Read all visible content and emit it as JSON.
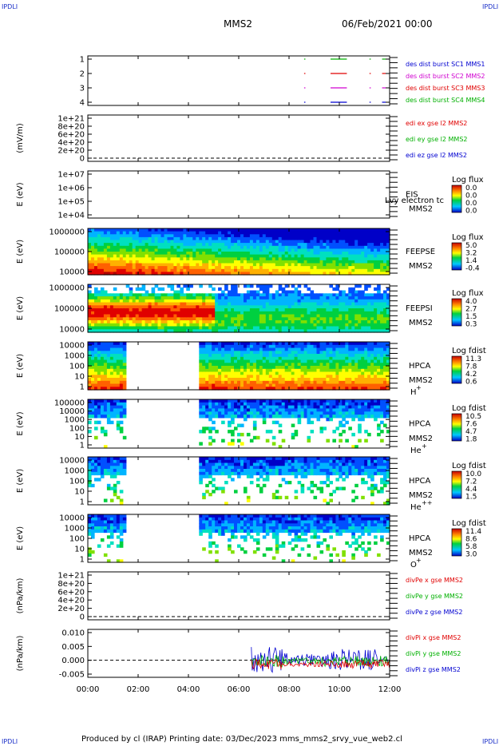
{
  "corner_labels": {
    "left": "IPDLI",
    "right": "IPDLI"
  },
  "header": {
    "spacecraft": "MMS2",
    "date": "06/Feb/2021 00:00"
  },
  "footer": {
    "text": "Produced by cl (IRAP)   Printing date: 03/Dec/2023   mms_mms2_srvy_vue_web2.cl"
  },
  "time_axis": {
    "ticks": [
      "00:00",
      "02:00",
      "04:00",
      "06:00",
      "08:00",
      "10:00",
      "12:00"
    ],
    "range_hours": [
      0,
      12
    ]
  },
  "colors": {
    "red": "#e00000",
    "green": "#00b000",
    "blue": "#0000d0",
    "magenta": "#d000d0",
    "dark": "#222"
  },
  "chart_data": [
    {
      "id": "burst",
      "type": "scatter",
      "yticks": [
        "1",
        "2",
        "3",
        "4"
      ],
      "legend": [
        {
          "label": "des dist burst SC1 MMS1",
          "color": "#0000d0"
        },
        {
          "label": "des dist burst SC2 MMS2",
          "color": "#d000d0"
        },
        {
          "label": "des dist burst SC3 MMS3",
          "color": "#e00000"
        },
        {
          "label": "des dist burst SC4 MMS4",
          "color": "#00b000"
        }
      ],
      "segments": [
        {
          "level": 4,
          "start": 8.6,
          "end": 8.65
        },
        {
          "level": 4,
          "start": 9.65,
          "end": 10.3
        },
        {
          "level": 4,
          "start": 11.2,
          "end": 11.25
        },
        {
          "level": 4,
          "start": 11.7,
          "end": 11.85
        },
        {
          "level": 3,
          "start": 8.6,
          "end": 8.65
        },
        {
          "level": 3,
          "start": 9.65,
          "end": 10.3
        },
        {
          "level": 3,
          "start": 11.2,
          "end": 11.25
        },
        {
          "level": 3,
          "start": 11.7,
          "end": 11.85
        },
        {
          "level": 2,
          "start": 8.6,
          "end": 8.65
        },
        {
          "level": 2,
          "start": 9.65,
          "end": 10.3
        },
        {
          "level": 2,
          "start": 11.2,
          "end": 11.25
        },
        {
          "level": 2,
          "start": 11.7,
          "end": 11.85
        },
        {
          "level": 1,
          "start": 8.6,
          "end": 8.65
        },
        {
          "level": 1,
          "start": 9.65,
          "end": 10.3
        },
        {
          "level": 1,
          "start": 11.2,
          "end": 11.25
        },
        {
          "level": 1,
          "start": 11.7,
          "end": 11.85
        }
      ]
    },
    {
      "id": "edi",
      "type": "line",
      "ylabel": "(mV/m)",
      "yticks": [
        "1e+21",
        "8e+20",
        "6e+20",
        "4e+20",
        "2e+20",
        "0"
      ],
      "legend": [
        {
          "label": "edi ex gse l2 MMS2",
          "color": "#e00000"
        },
        {
          "label": "edi ey gse l2 MMS2",
          "color": "#00b000"
        },
        {
          "label": "edi ez gse l2 MMS2",
          "color": "#0000d0"
        }
      ]
    },
    {
      "id": "eis",
      "type": "heatmap",
      "ylabel": "E (eV)",
      "yticks": [
        "1e+07",
        "1e+06",
        "1e+05",
        "1e+04"
      ],
      "name": "EIS",
      "name2": "MMS2",
      "overlay": "Lvy electron tc",
      "cbar_title": "Log flux",
      "cbar_values": [
        "0.0",
        "0.0",
        "0.0",
        "0.0"
      ]
    },
    {
      "id": "feepse",
      "type": "heatmap",
      "ylabel": "E (eV)",
      "yticks": [
        "1000000",
        "100000",
        "10000"
      ],
      "name": "FEEPSE",
      "name2": "MMS2",
      "cbar_title": "Log flux",
      "cbar_values": [
        "5.0",
        "3.2",
        "1.4",
        "-0.4"
      ]
    },
    {
      "id": "feepsi",
      "type": "heatmap",
      "ylabel": "E (eV)",
      "yticks": [
        "1000000",
        "100000",
        "10000"
      ],
      "name": "FEEPSI",
      "name2": "MMS2",
      "cbar_title": "Log flux",
      "cbar_values": [
        "4.0",
        "2.7",
        "1.5",
        "0.3"
      ]
    },
    {
      "id": "hpca_h",
      "type": "heatmap",
      "ylabel": "E (eV)",
      "yticks": [
        "10000",
        "1000",
        "100",
        "10",
        "1"
      ],
      "name": "HPCA",
      "name2": "MMS2",
      "species": "H",
      "charge": "+",
      "cbar_title": "Log fdist",
      "cbar_values": [
        "11.3",
        "7.8",
        "4.2",
        "0.6"
      ]
    },
    {
      "id": "hpca_he1",
      "type": "heatmap",
      "ylabel": "E (eV)",
      "yticks": [
        "100000",
        "10000",
        "1000",
        "100",
        "10",
        "1"
      ],
      "name": "HPCA",
      "name2": "MMS2",
      "species": "He",
      "charge": "+",
      "cbar_title": "Log fdist",
      "cbar_values": [
        "10.5",
        "7.6",
        "4.7",
        "1.8"
      ]
    },
    {
      "id": "hpca_he2",
      "type": "heatmap",
      "ylabel": "E (eV)",
      "yticks": [
        "10000",
        "1000",
        "100",
        "10",
        "1"
      ],
      "name": "HPCA",
      "name2": "MMS2",
      "species": "He",
      "charge": "++",
      "cbar_title": "Log fdist",
      "cbar_values": [
        "10.0",
        "7.2",
        "4.4",
        "1.5"
      ]
    },
    {
      "id": "hpca_o",
      "type": "heatmap",
      "ylabel": "E (eV)",
      "yticks": [
        "10000",
        "1000",
        "100",
        "10",
        "1"
      ],
      "name": "HPCA",
      "name2": "MMS2",
      "species": "O",
      "charge": "+",
      "cbar_title": "Log fdist",
      "cbar_values": [
        "11.4",
        "8.6",
        "5.8",
        "3.0"
      ]
    },
    {
      "id": "divpe",
      "type": "line",
      "ylabel": "(nPa/km)",
      "yticks": [
        "1e+21",
        "8e+20",
        "6e+20",
        "4e+20",
        "2e+20",
        "0"
      ],
      "legend": [
        {
          "label": "divPe x gse MMS2",
          "color": "#e00000"
        },
        {
          "label": "divPe y gse MMS2",
          "color": "#00b000"
        },
        {
          "label": "divPe z gse MMS2",
          "color": "#0000d0"
        }
      ]
    },
    {
      "id": "divpi",
      "type": "line",
      "ylabel": "(nPa/km)",
      "yticks": [
        "0.010",
        "0.005",
        "0.000",
        "-0.005"
      ],
      "ylim": [
        -0.009,
        0.011
      ],
      "legend": [
        {
          "label": "divPi x gse MMS2",
          "color": "#e00000"
        },
        {
          "label": "divPi y gse MMS2",
          "color": "#00b000"
        },
        {
          "label": "divPi z gse MMS2",
          "color": "#0000d0"
        }
      ],
      "data_start_hour": 6.5
    }
  ]
}
